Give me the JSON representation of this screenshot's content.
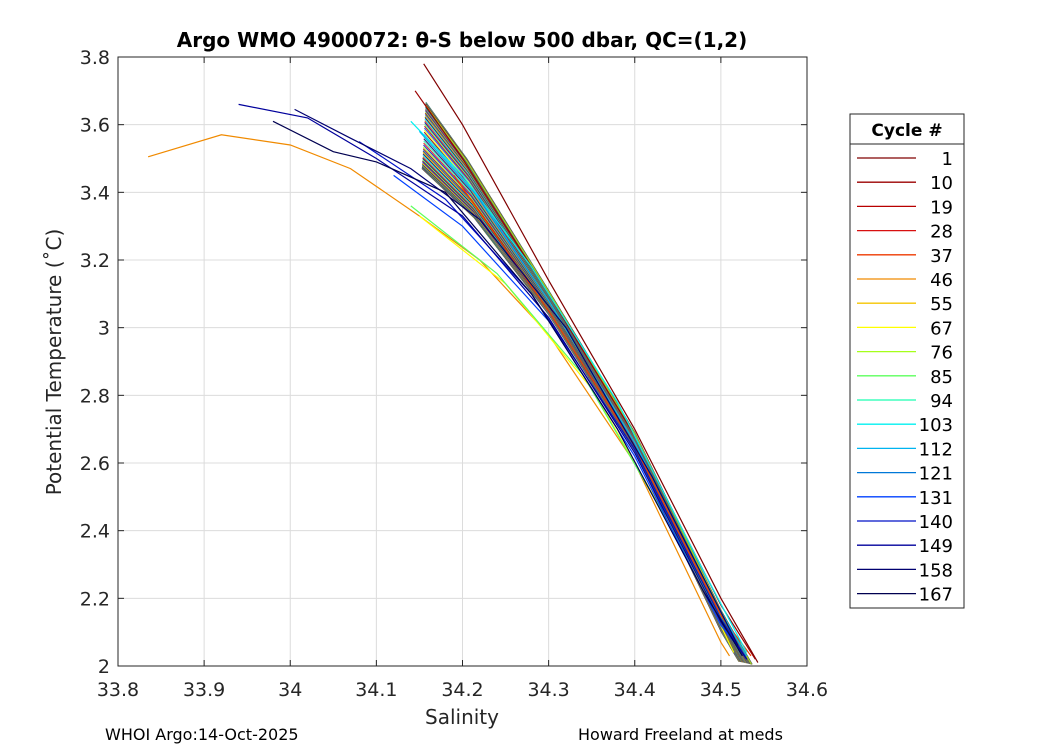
{
  "chart_data": {
    "type": "line",
    "title": "Argo WMO 4900072: θ-S below 500 dbar,  QC=(1,2)",
    "xlabel": "Salinity",
    "ylabel": "Potential Temperature (˚C)",
    "xlim": [
      33.8,
      34.6
    ],
    "ylim": [
      2.0,
      3.8
    ],
    "xticks": [
      33.8,
      33.9,
      34.0,
      34.1,
      34.2,
      34.3,
      34.4,
      34.5,
      34.6
    ],
    "yticks": [
      2.0,
      2.2,
      2.4,
      2.6,
      2.8,
      3.0,
      3.2,
      3.4,
      3.6,
      3.8
    ],
    "xtick_labels": [
      "33.8",
      "33.9",
      "34",
      "34.1",
      "34.2",
      "34.3",
      "34.4",
      "34.5",
      "34.6"
    ],
    "ytick_labels": [
      "2",
      "2.2",
      "2.4",
      "2.6",
      "2.8",
      "3",
      "3.2",
      "3.4",
      "3.6",
      "3.8"
    ],
    "grid": true,
    "legend_position": "right",
    "legend": {
      "title": "Cycle #",
      "entries": [
        {
          "label": "1",
          "color": "#800000"
        },
        {
          "label": "10",
          "color": "#9b0000"
        },
        {
          "label": "19",
          "color": "#b80000"
        },
        {
          "label": "28",
          "color": "#d81010"
        },
        {
          "label": "37",
          "color": "#ee3a00"
        },
        {
          "label": "46",
          "color": "#f08a00"
        },
        {
          "label": "55",
          "color": "#f5c400"
        },
        {
          "label": "67",
          "color": "#ffff00"
        },
        {
          "label": "76",
          "color": "#a6ff1a"
        },
        {
          "label": "85",
          "color": "#5cff5c"
        },
        {
          "label": "94",
          "color": "#1affb0"
        },
        {
          "label": "103",
          "color": "#00f0f0"
        },
        {
          "label": "112",
          "color": "#00b4f0"
        },
        {
          "label": "121",
          "color": "#0078d8"
        },
        {
          "label": "131",
          "color": "#0040ff"
        },
        {
          "label": "140",
          "color": "#0010c8"
        },
        {
          "label": "149",
          "color": "#00009c"
        },
        {
          "label": "158",
          "color": "#000070"
        },
        {
          "label": "167",
          "color": "#000050"
        }
      ]
    },
    "envelope": {
      "lower": [
        [
          34.15,
          3.33
        ],
        [
          34.22,
          3.2
        ],
        [
          34.3,
          2.99
        ],
        [
          34.4,
          2.6
        ],
        [
          34.5,
          2.06
        ],
        [
          34.51,
          2.02
        ]
      ],
      "upper": [
        [
          34.16,
          3.78
        ],
        [
          34.2,
          3.6
        ],
        [
          34.3,
          3.15
        ],
        [
          34.4,
          2.72
        ],
        [
          34.5,
          2.2
        ],
        [
          34.545,
          2.0
        ]
      ]
    },
    "series": [
      {
        "name": "cycle-1",
        "color": "#800000",
        "points": [
          [
            34.155,
            3.78
          ],
          [
            34.2,
            3.6
          ],
          [
            34.3,
            3.14
          ],
          [
            34.4,
            2.7
          ],
          [
            34.5,
            2.2
          ],
          [
            34.543,
            2.01
          ]
        ]
      },
      {
        "name": "cycle-10",
        "color": "#9b0000",
        "points": [
          [
            34.145,
            3.7
          ],
          [
            34.2,
            3.5
          ],
          [
            34.3,
            3.1
          ],
          [
            34.4,
            2.68
          ],
          [
            34.5,
            2.18
          ],
          [
            34.54,
            2.02
          ]
        ]
      },
      {
        "name": "cycle-37",
        "color": "#ee3a00",
        "points": [
          [
            34.19,
            3.45
          ],
          [
            34.3,
            3.05
          ],
          [
            34.4,
            2.65
          ],
          [
            34.5,
            2.15
          ],
          [
            34.535,
            2.03
          ]
        ]
      },
      {
        "name": "cycle-46",
        "color": "#f08a00",
        "points": [
          [
            33.835,
            3.505
          ],
          [
            33.92,
            3.57
          ],
          [
            34.0,
            3.54
          ],
          [
            34.07,
            3.47
          ],
          [
            34.15,
            3.33
          ],
          [
            34.22,
            3.2
          ],
          [
            34.3,
            2.98
          ],
          [
            34.4,
            2.6
          ],
          [
            34.5,
            2.07
          ],
          [
            34.51,
            2.03
          ]
        ]
      },
      {
        "name": "cycle-67",
        "color": "#ffff00",
        "points": [
          [
            34.15,
            3.33
          ],
          [
            34.25,
            3.13
          ],
          [
            34.35,
            2.82
          ],
          [
            34.45,
            2.38
          ],
          [
            34.515,
            2.04
          ]
        ]
      },
      {
        "name": "cycle-85",
        "color": "#5cff5c",
        "points": [
          [
            34.14,
            3.36
          ],
          [
            34.24,
            3.16
          ],
          [
            34.34,
            2.86
          ],
          [
            34.44,
            2.42
          ],
          [
            34.52,
            2.05
          ]
        ]
      },
      {
        "name": "cycle-103",
        "color": "#00f0f0",
        "points": [
          [
            34.14,
            3.61
          ],
          [
            34.2,
            3.45
          ],
          [
            34.28,
            3.18
          ],
          [
            34.38,
            2.78
          ],
          [
            34.48,
            2.28
          ],
          [
            34.53,
            2.04
          ]
        ]
      },
      {
        "name": "cycle-112",
        "color": "#00b4f0",
        "points": [
          [
            34.15,
            3.58
          ],
          [
            34.22,
            3.38
          ],
          [
            34.3,
            3.08
          ],
          [
            34.4,
            2.66
          ],
          [
            34.5,
            2.16
          ],
          [
            34.53,
            2.03
          ]
        ]
      },
      {
        "name": "cycle-131",
        "color": "#0040ff",
        "points": [
          [
            34.12,
            3.45
          ],
          [
            34.2,
            3.3
          ],
          [
            34.3,
            3.02
          ],
          [
            34.4,
            2.62
          ],
          [
            34.5,
            2.12
          ],
          [
            34.528,
            2.03
          ]
        ]
      },
      {
        "name": "cycle-140",
        "color": "#0010c8",
        "points": [
          [
            34.08,
            3.55
          ],
          [
            34.18,
            3.38
          ],
          [
            34.28,
            3.1
          ],
          [
            34.4,
            2.64
          ],
          [
            34.5,
            2.14
          ],
          [
            34.53,
            2.02
          ]
        ]
      },
      {
        "name": "cycle-149",
        "color": "#00009c",
        "points": [
          [
            33.94,
            3.66
          ],
          [
            34.02,
            3.62
          ],
          [
            34.1,
            3.5
          ],
          [
            34.2,
            3.33
          ],
          [
            34.3,
            3.03
          ],
          [
            34.4,
            2.63
          ],
          [
            34.5,
            2.13
          ],
          [
            34.53,
            2.02
          ]
        ]
      },
      {
        "name": "cycle-158",
        "color": "#000070",
        "points": [
          [
            34.005,
            3.645
          ],
          [
            34.07,
            3.56
          ],
          [
            34.14,
            3.47
          ],
          [
            34.22,
            3.32
          ],
          [
            34.32,
            3.0
          ],
          [
            34.42,
            2.56
          ],
          [
            34.52,
            2.06
          ]
        ]
      },
      {
        "name": "cycle-167",
        "color": "#000050",
        "points": [
          [
            33.98,
            3.61
          ],
          [
            34.05,
            3.52
          ],
          [
            34.1,
            3.49
          ],
          [
            34.18,
            3.4
          ],
          [
            34.28,
            3.1
          ],
          [
            34.38,
            2.7
          ],
          [
            34.48,
            2.22
          ],
          [
            34.525,
            2.03
          ]
        ]
      }
    ]
  },
  "footer": {
    "left": "WHOI Argo:14-Oct-2025",
    "right": "Howard Freeland at meds"
  }
}
